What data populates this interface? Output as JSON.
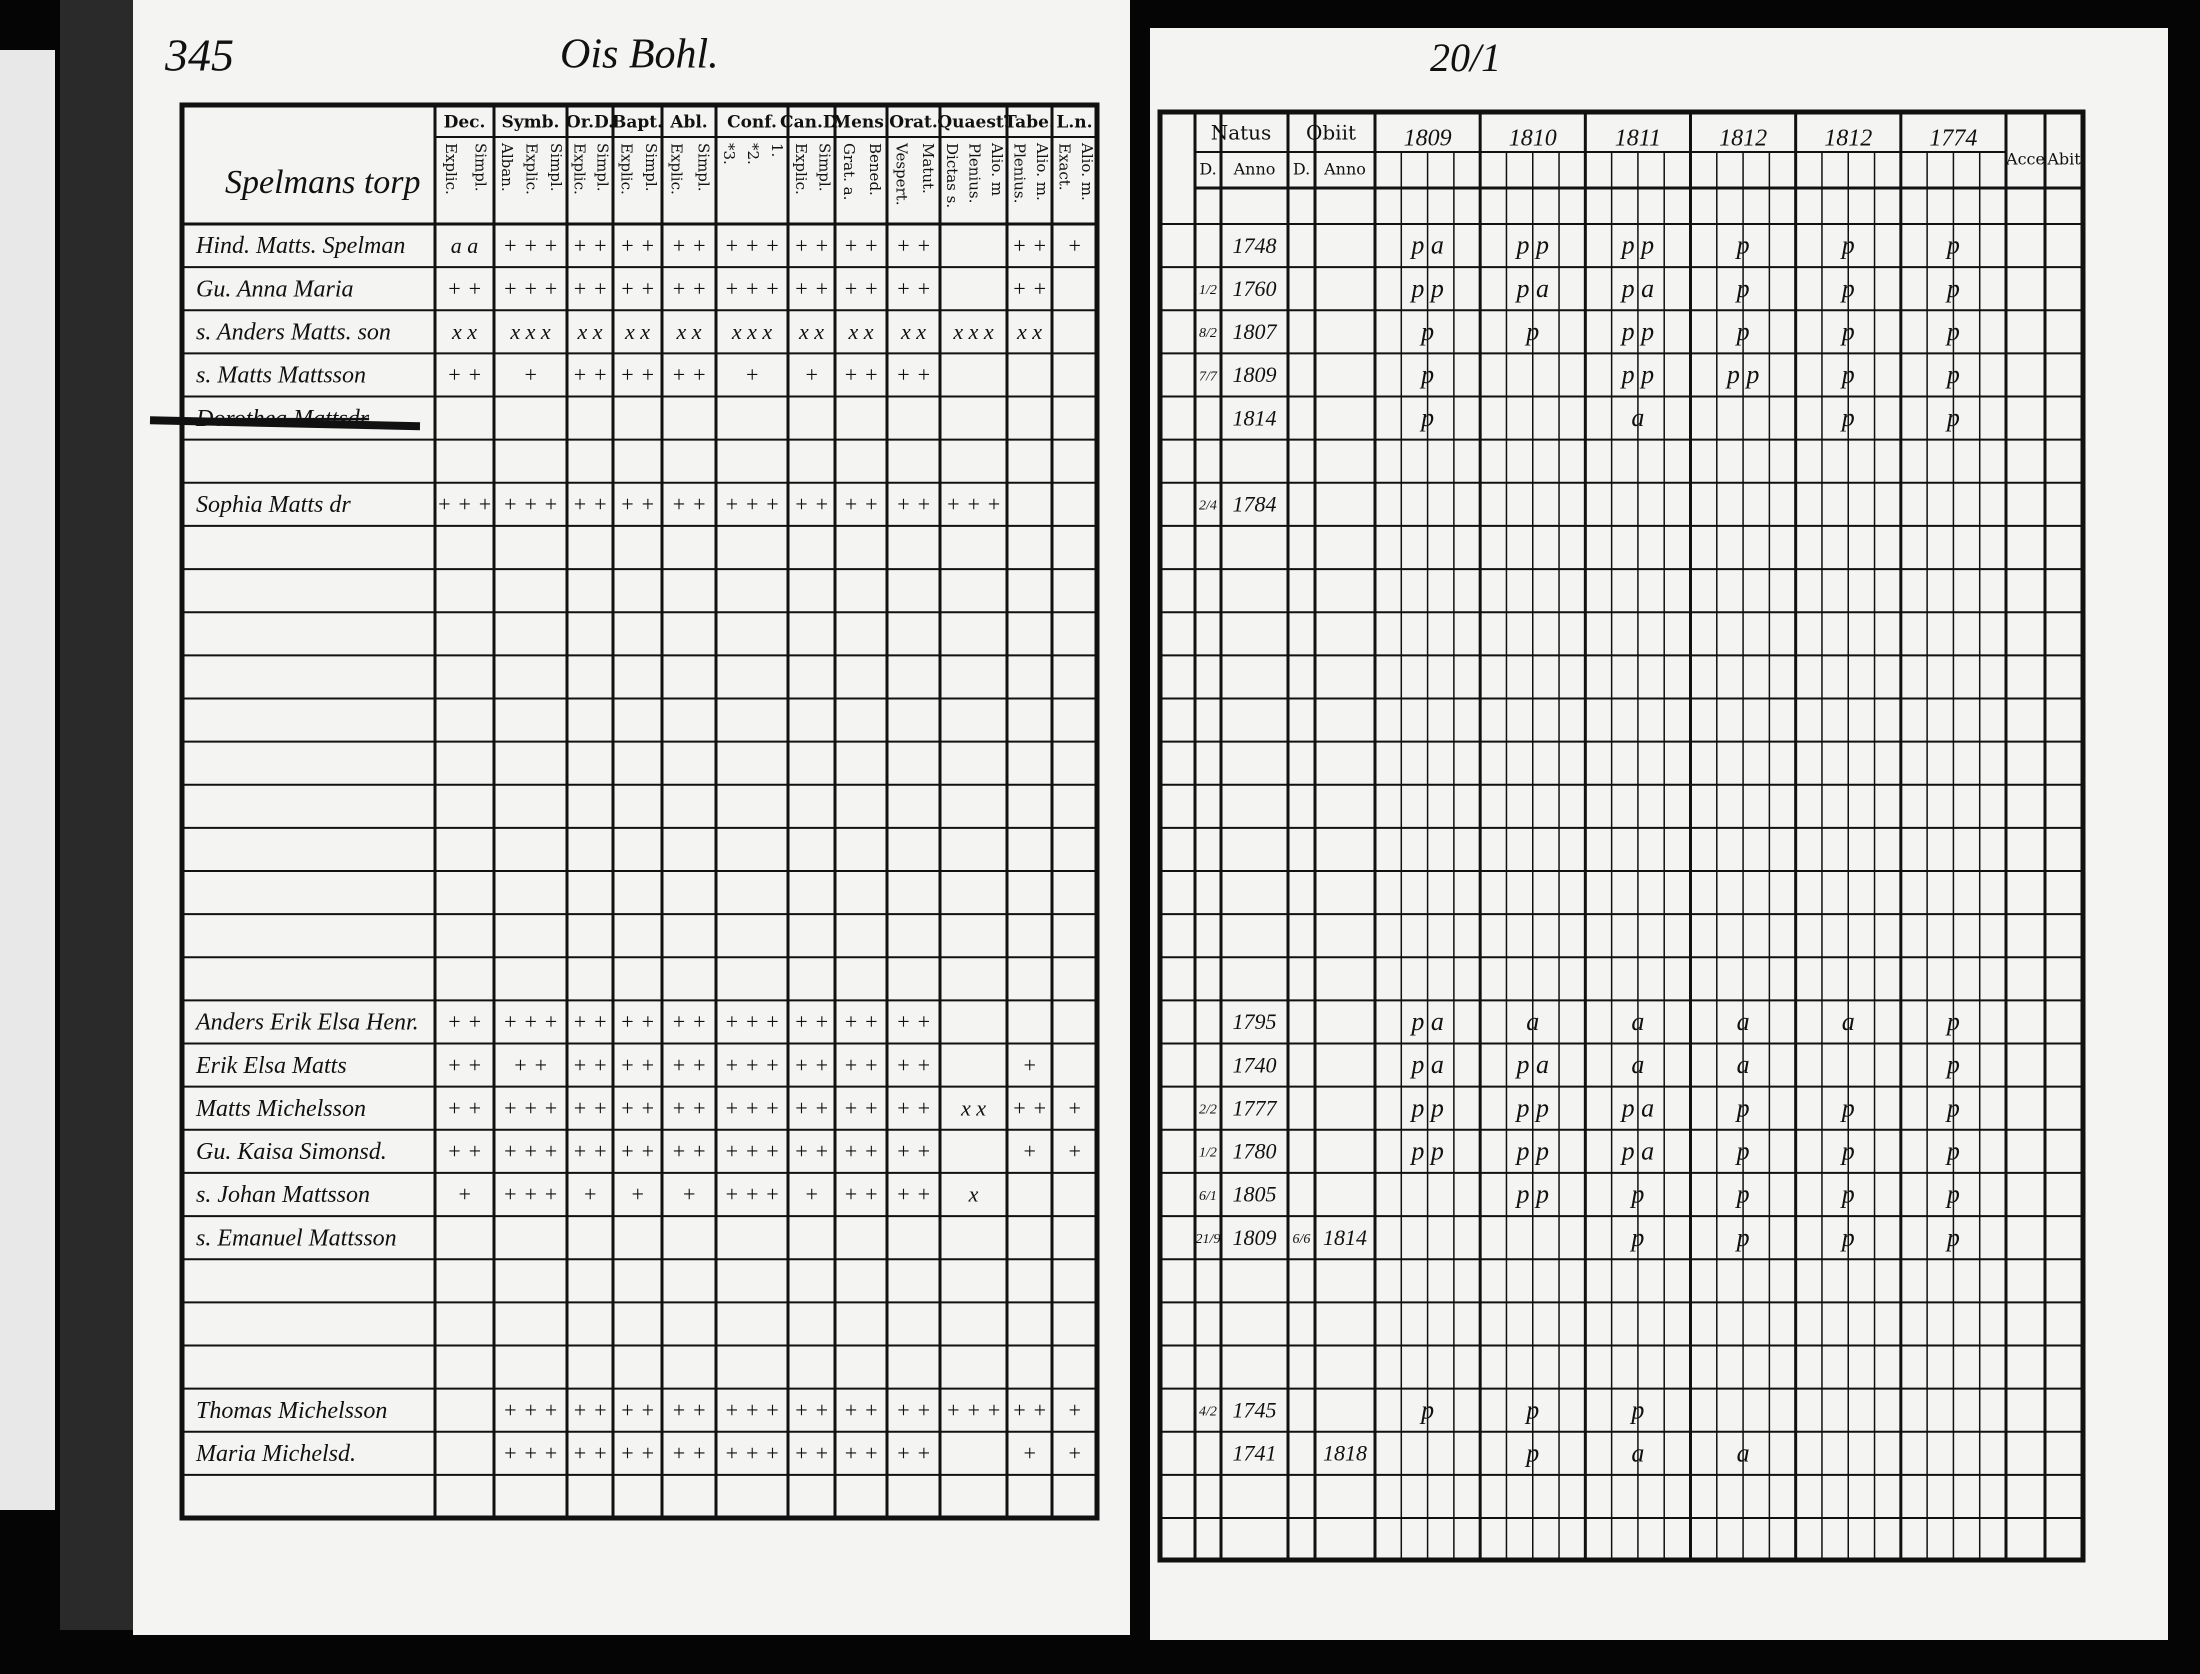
{
  "header": {
    "page_number": "345",
    "parish": "Ois Bohl.",
    "right_folio": "20/1",
    "place": "Spelmans torp"
  },
  "left_columns": [
    {
      "label": "Dec.",
      "sub": [
        "Explic.",
        "Simpl."
      ]
    },
    {
      "label": "Symb.",
      "sub": [
        "Alban.",
        "Explic.",
        "Simpl."
      ]
    },
    {
      "label": "Or.D.",
      "sub": [
        "Explic.",
        "Simpl."
      ]
    },
    {
      "label": "Bapt.",
      "sub": [
        "Explic.",
        "Simpl."
      ]
    },
    {
      "label": "Abl.",
      "sub": [
        "Explic.",
        "Simpl."
      ]
    },
    {
      "label": "Conf.",
      "sub": [
        "*3.",
        "*2.",
        "1."
      ]
    },
    {
      "label": "Can.D.",
      "sub": [
        "Explic.",
        "Simpl."
      ]
    },
    {
      "label": "Mens.",
      "sub": [
        "Grat. a.",
        "Bened."
      ]
    },
    {
      "label": "Orat.",
      "sub": [
        "Vespert.",
        "Matut."
      ]
    },
    {
      "label": "Quaest.",
      "sub": [
        "Dictas s.",
        "Plenius.",
        "Alio. m"
      ]
    },
    {
      "label": "Tabe.",
      "sub": [
        "Plenius.",
        "Alio. m."
      ]
    },
    {
      "label": "L.n.",
      "sub": [
        "Exact.",
        "Alio. m."
      ]
    }
  ],
  "right_columns": {
    "natus": "Natus",
    "obiit": "Obiit",
    "day": "D.",
    "year": "Anno",
    "years": [
      "1809",
      "1810",
      "1811",
      "1812",
      "1812",
      "1774"
    ],
    "accessit": "Acce",
    "abiit": "Abit"
  },
  "rows": [
    {
      "name": "Hind. Matts. Spelman",
      "marks": [
        "a a",
        "+ + +",
        "+ +",
        "+ +",
        "+ +",
        "+ + +",
        "+ +",
        "+ +",
        "+ +",
        null,
        "+ +",
        "+"
      ],
      "born": "1748",
      "years": [
        "p a",
        "p p",
        "p p",
        "p",
        "p",
        "p"
      ]
    },
    {
      "name": "Gu. Anna Maria",
      "marks": [
        "+ +",
        "+ + +",
        "+ +",
        "+ +",
        "+ +",
        "+ + +",
        "+ +",
        "+ +",
        "+ +",
        null,
        "+ +",
        null
      ],
      "born_day": "1/2",
      "born": "1760",
      "years": [
        "p p",
        "p a",
        "p a",
        "p",
        "p",
        "p"
      ]
    },
    {
      "name": "s. Anders Matts. son",
      "marks": [
        "x x",
        "x x x",
        "x x",
        "x x",
        "x x",
        "x x x",
        "x x",
        "x x",
        "x x",
        "x x x",
        "x x",
        null
      ],
      "born_day": "8/2",
      "born": "1807",
      "years": [
        "p",
        "p",
        "p p",
        "p",
        "p",
        "p"
      ]
    },
    {
      "name": "s. Matts Mattsson",
      "marks": [
        "+ +",
        "+",
        "+ +",
        "+ +",
        "+ +",
        "+",
        "+",
        "+ +",
        "+ +",
        null,
        null,
        null
      ],
      "born_day": "7/7",
      "born": "1809",
      "years": [
        "p",
        null,
        "p p",
        "p p",
        "p",
        "p"
      ]
    },
    {
      "name": "Dorothea Mattsdr",
      "struck": true,
      "born": "1814",
      "years": [
        "p",
        null,
        "a",
        null,
        "p",
        "p"
      ]
    },
    {
      "name": "Sophia Matts dr",
      "marks": [
        "+ + +",
        "+ + +",
        "+ +",
        "+ +",
        "+ +",
        "+ + +",
        "+ +",
        "+ +",
        "+ +",
        "+ + +",
        null,
        null
      ],
      "born_day": "2/4",
      "born": "1784"
    },
    {
      "name": "Anders Erik Elsa Henr.",
      "marks": [
        "+ +",
        "+ + +",
        "+ +",
        "+ +",
        "+ +",
        "+ + +",
        "+ +",
        "+ +",
        "+ +",
        null,
        null,
        null
      ],
      "born": "1795",
      "years": [
        "p a",
        "a",
        "a",
        "a",
        "a",
        "p"
      ]
    },
    {
      "name": "Erik Elsa Matts",
      "marks": [
        "+ +",
        "+ +",
        "+ +",
        "+ +",
        "+ +",
        "+ + +",
        "+ +",
        "+ +",
        "+ +",
        null,
        "+",
        null
      ],
      "born": "1740",
      "years": [
        "p a",
        "p a",
        "a",
        "a",
        null,
        "p"
      ]
    },
    {
      "name": "Matts Michelsson",
      "marks": [
        "+ +",
        "+ + +",
        "+ +",
        "+ +",
        "+ +",
        "+ + +",
        "+ +",
        "+ +",
        "+ +",
        "x x",
        "+ +",
        "+"
      ],
      "born_day": "2/2",
      "born": "1777",
      "years": [
        "p p",
        "p p",
        "p a",
        "p",
        "p",
        "p"
      ]
    },
    {
      "name": "Gu. Kaisa Simonsd.",
      "marks": [
        "+ +",
        "+ + +",
        "+ +",
        "+ +",
        "+ +",
        "+ + +",
        "+ +",
        "+ +",
        "+ +",
        null,
        "+",
        "+"
      ],
      "born_day": "1/2",
      "born": "1780",
      "years": [
        "p p",
        "p p",
        "p a",
        "p",
        "p",
        "p"
      ]
    },
    {
      "name": "s. Johan Mattsson",
      "marks": [
        "+",
        "+ + +",
        "+",
        "+",
        "+",
        "+ + +",
        "+",
        "+ +",
        "+ +",
        "x",
        null,
        null
      ],
      "born_day": "6/1",
      "born": "1805",
      "years": [
        null,
        "p p",
        "p",
        "p",
        "p",
        "p"
      ]
    },
    {
      "name": "s. Emanuel Mattsson",
      "born_day": "21/9",
      "born": "1809",
      "died_day": "6/6",
      "died": "1814",
      "years": [
        null,
        null,
        "p",
        "p",
        "p",
        "p"
      ]
    },
    {
      "name": "Thomas Michelsson",
      "marks": [
        null,
        "+ + +",
        "+ +",
        "+ +",
        "+ +",
        "+ + +",
        "+ +",
        "+ +",
        "+ +",
        "+ + +",
        "+ +",
        "+"
      ],
      "born_day": "4/2",
      "born": "1745",
      "years": [
        "p",
        "p",
        "p",
        null,
        null,
        null
      ]
    },
    {
      "name": "Maria Michelsd.",
      "marks": [
        null,
        "+ + +",
        "+ +",
        "+ +",
        "+ +",
        "+ + +",
        "+ +",
        "+ +",
        "+ +",
        null,
        "+",
        "+"
      ],
      "born": "1741",
      "died": "1818",
      "years": [
        null,
        "p",
        "a",
        "a",
        null,
        null
      ]
    }
  ]
}
